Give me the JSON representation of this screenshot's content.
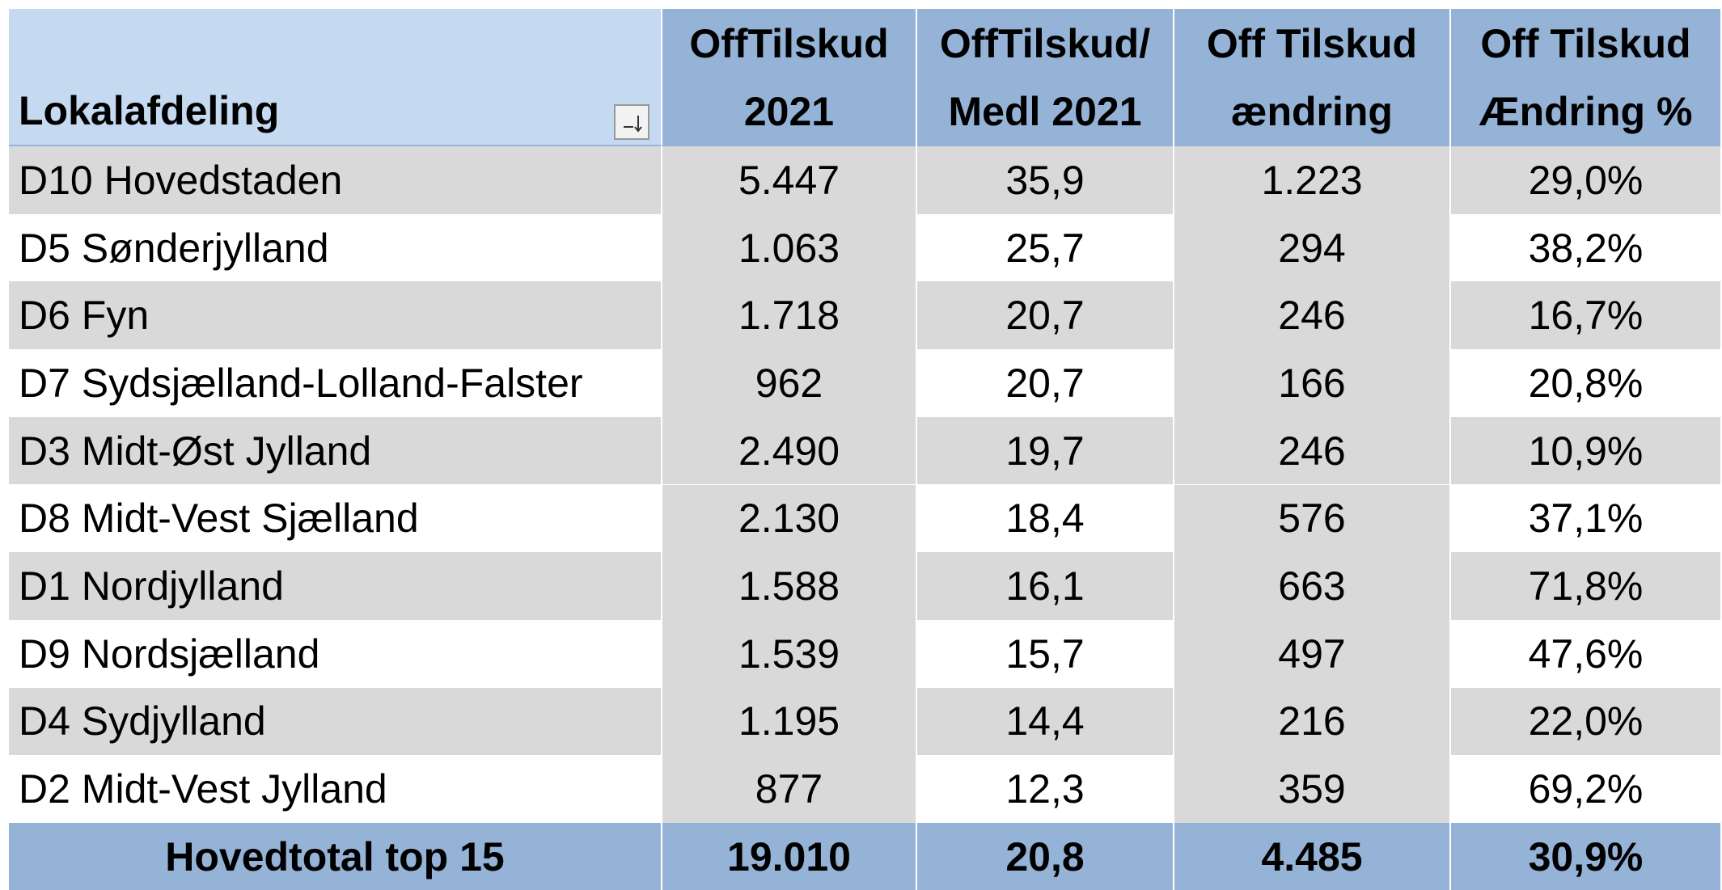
{
  "table": {
    "header": [
      [
        "Lokalafdeling"
      ],
      [
        "OffTilskud",
        "2021"
      ],
      [
        "OffTilskud/",
        "Medl 2021"
      ],
      [
        "Off Tilskud",
        "ændring"
      ],
      [
        "Off Tilskud",
        "Ændring %"
      ]
    ],
    "rows": [
      [
        "D10 Hovedstaden",
        "5.447",
        "35,9",
        "1.223",
        "29,0%"
      ],
      [
        "D5 Sønderjylland",
        "1.063",
        "25,7",
        "294",
        "38,2%"
      ],
      [
        "D6 Fyn",
        "1.718",
        "20,7",
        "246",
        "16,7%"
      ],
      [
        "D7 Sydsjælland-Lolland-Falster",
        "962",
        "20,7",
        "166",
        "20,8%"
      ],
      [
        "D3 Midt-Øst Jylland",
        "2.490",
        "19,7",
        "246",
        "10,9%"
      ],
      [
        "D8 Midt-Vest Sjælland",
        "2.130",
        "18,4",
        "576",
        "37,1%"
      ],
      [
        "D1 Nordjylland",
        "1.588",
        "16,1",
        "663",
        "71,8%"
      ],
      [
        "D9 Nordsjælland",
        "1.539",
        "15,7",
        "497",
        "47,6%"
      ],
      [
        "D4 Sydjylland",
        "1.195",
        "14,4",
        "216",
        "22,0%"
      ],
      [
        "D2 Midt-Vest Jylland",
        "877",
        "12,3",
        "359",
        "69,2%"
      ]
    ],
    "total": [
      "Hovedtotal top 15",
      "19.010",
      "20,8",
      "4.485",
      "30,9%"
    ]
  }
}
